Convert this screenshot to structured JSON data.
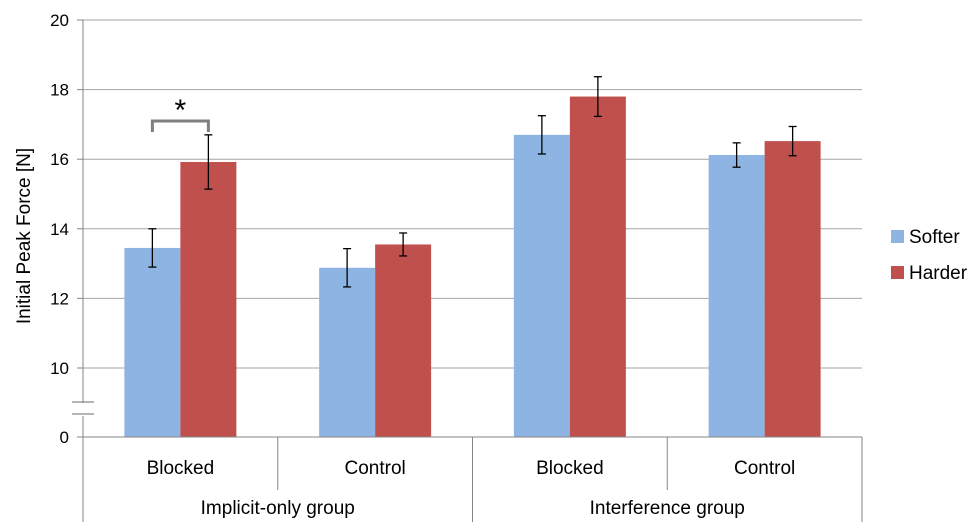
{
  "chart_data": {
    "type": "bar",
    "ylabel": "Initial Peak Force [N]",
    "xlabel": "",
    "y_ticks": [
      "20",
      "18",
      "16",
      "14",
      "12",
      "10",
      "0"
    ],
    "axis_break": "between 0 and 10",
    "ylim": [
      8,
      20
    ],
    "grid": true,
    "legend_position": "right",
    "groups": [
      {
        "label": "Implicit-only group",
        "categories": [
          "Blocked",
          "Control"
        ]
      },
      {
        "label": "Interference group",
        "categories": [
          "Blocked",
          "Control"
        ]
      }
    ],
    "categories": [
      "Blocked",
      "Control",
      "Blocked",
      "Control"
    ],
    "series": [
      {
        "name": "Softer",
        "color": "#8db4e2",
        "values": [
          13.45,
          12.88,
          16.7,
          16.12
        ],
        "error": [
          0.55,
          0.55,
          0.55,
          0.35
        ]
      },
      {
        "name": "Harder",
        "color": "#c0504d",
        "values": [
          15.92,
          13.55,
          17.8,
          16.52
        ],
        "error": [
          0.78,
          0.33,
          0.57,
          0.42
        ]
      }
    ],
    "annotations": [
      {
        "text": "*",
        "between": "Softer and Harder, Implicit-only group Blocked"
      }
    ]
  }
}
